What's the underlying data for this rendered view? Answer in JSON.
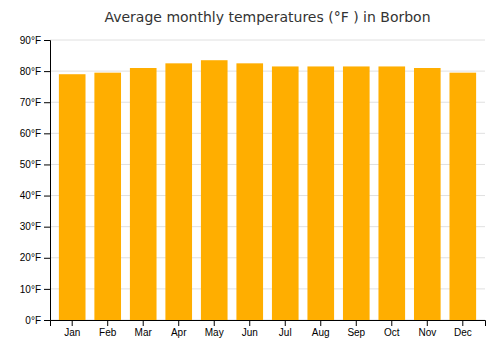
{
  "chart_data": {
    "type": "bar",
    "title": "Average monthly temperatures (°F ) in Borbon",
    "categories": [
      "Jan",
      "Feb",
      "Mar",
      "Apr",
      "May",
      "Jun",
      "Jul",
      "Aug",
      "Sep",
      "Oct",
      "Nov",
      "Dec"
    ],
    "values": [
      79,
      79.5,
      81,
      82.5,
      83.5,
      82.5,
      81.5,
      81.5,
      81.5,
      81.5,
      81,
      79.5
    ],
    "color": "#FFAE00",
    "ylim": [
      0,
      90
    ],
    "yticks": [
      {
        "value": 0,
        "label": "0°F"
      },
      {
        "value": 10,
        "label": "10°F"
      },
      {
        "value": 20,
        "label": "20°F"
      },
      {
        "value": 30,
        "label": "30°F"
      },
      {
        "value": 40,
        "label": "40°F"
      },
      {
        "value": 50,
        "label": "50°F"
      },
      {
        "value": 60,
        "label": "60°F"
      },
      {
        "value": 70,
        "label": "70°F"
      },
      {
        "value": 80,
        "label": "80°F"
      },
      {
        "value": 90,
        "label": "90°F"
      }
    ],
    "grid": true
  }
}
